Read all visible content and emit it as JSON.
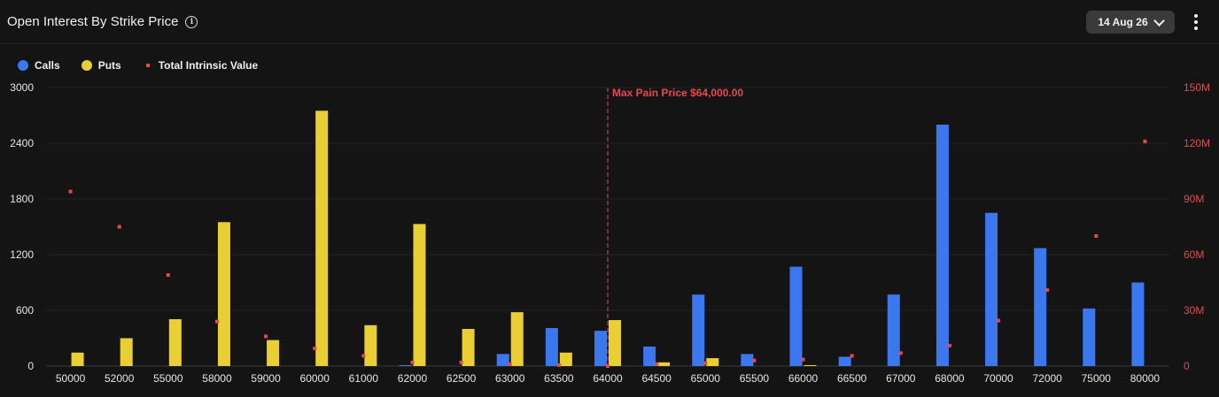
{
  "header": {
    "title": "Open Interest By Strike Price",
    "info_icon": "info-icon",
    "date_selected": "14 Aug 26",
    "chevron_icon": "chevron-down-icon",
    "menu_icon": "more-vertical-icon"
  },
  "colors": {
    "calls": "#3b78f0",
    "puts": "#e9cf33",
    "intrinsic": "#e8474f",
    "background": "#141414"
  },
  "legend": [
    {
      "label": "Calls",
      "color": "#3b78f0",
      "shape": "circle"
    },
    {
      "label": "Puts",
      "color": "#e9cf33",
      "shape": "circle"
    },
    {
      "label": "Total Intrinsic Value",
      "color": "#e8474f",
      "shape": "square"
    }
  ],
  "chart_data": {
    "type": "bar",
    "categories": [
      "50000",
      "52000",
      "55000",
      "58000",
      "59000",
      "60000",
      "61000",
      "62000",
      "62500",
      "63000",
      "63500",
      "64000",
      "64500",
      "65000",
      "65500",
      "66000",
      "66500",
      "67000",
      "68000",
      "70000",
      "72000",
      "75000",
      "80000"
    ],
    "series": [
      {
        "name": "Calls",
        "axis": "left",
        "values": [
          0,
          0,
          0,
          0,
          0,
          0,
          0,
          10,
          0,
          130,
          410,
          380,
          210,
          770,
          130,
          1070,
          100,
          770,
          2600,
          1650,
          1270,
          620,
          900
        ]
      },
      {
        "name": "Puts",
        "axis": "left",
        "values": [
          145,
          300,
          505,
          1550,
          280,
          2750,
          440,
          1530,
          400,
          580,
          145,
          495,
          40,
          85,
          0,
          10,
          0,
          0,
          0,
          0,
          0,
          0,
          0
        ]
      },
      {
        "name": "Total Intrinsic Value",
        "axis": "right",
        "type": "scatter",
        "values": [
          94000000,
          75000000,
          49000000,
          24000000,
          16000000,
          9500000,
          5500000,
          2000000,
          2000000,
          1000000,
          500000,
          0,
          1000000,
          1500000,
          3000000,
          3500000,
          5500000,
          7000000,
          11000000,
          24500000,
          41000000,
          70000000,
          121000000
        ]
      }
    ],
    "y_left": {
      "min": 0,
      "max": 3000,
      "ticks": [
        "0",
        "600",
        "1200",
        "1800",
        "2400",
        "3000"
      ]
    },
    "y_right": {
      "min": 0,
      "max": 150000000,
      "ticks": [
        "0",
        "30M",
        "60M",
        "90M",
        "120M",
        "150M"
      ]
    },
    "annotation": {
      "category": "64000",
      "label": "Max Pain Price $64,000.00"
    },
    "grid": "horizontal",
    "legend_position": "top-left"
  }
}
